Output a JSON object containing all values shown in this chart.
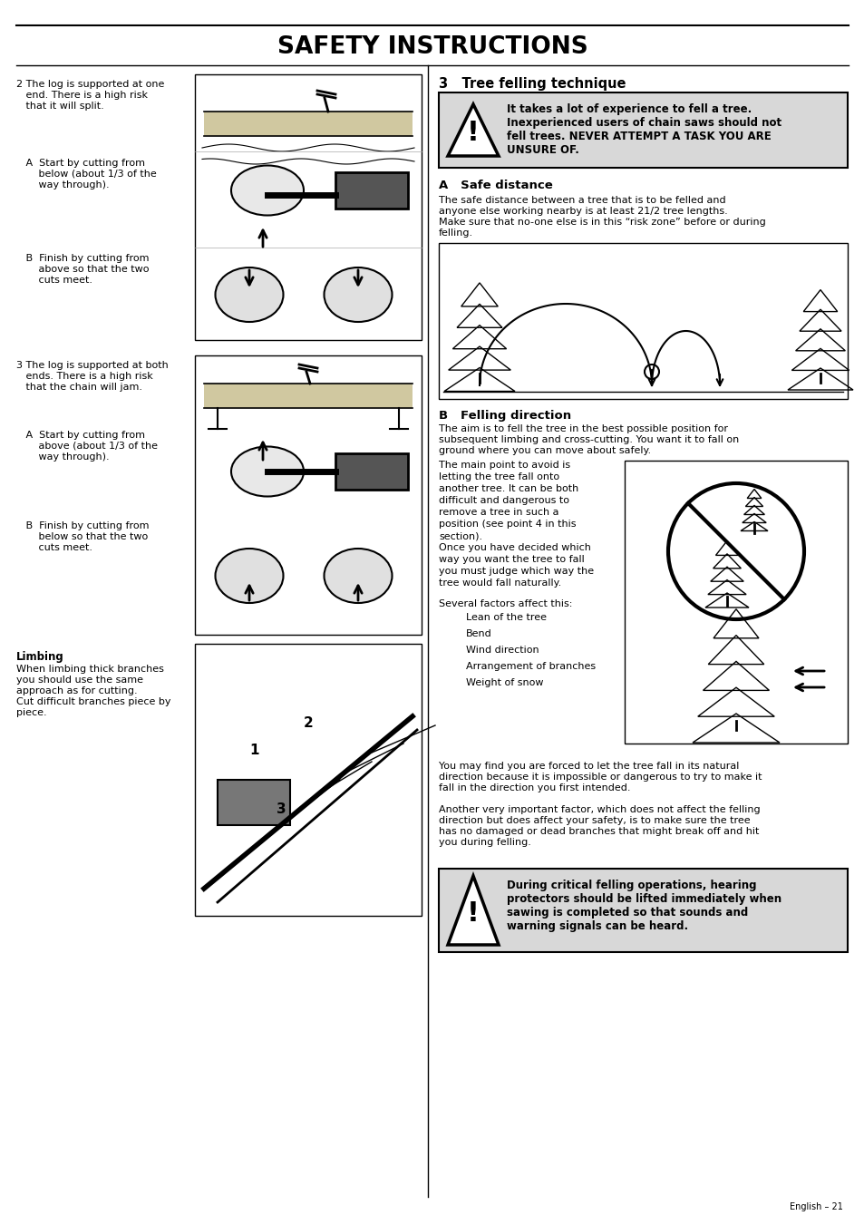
{
  "title": "SAFETY INSTRUCTIONS",
  "bg_color": "#ffffff",
  "text_color": "#000000",
  "page_number": "English – 21",
  "section3_title": "3   Tree felling technique",
  "warn1_line1": "It takes a lot of experience to fell a tree.",
  "warn1_line2": "Inexperienced users of chain saws should not",
  "warn1_line3": "fell trees. NEVER ATTEMPT A TASK YOU ARE",
  "warn1_line4": "UNSURE OF.",
  "warn2_line1": "During critical felling operations, hearing",
  "warn2_line2": "protectors should be lifted immediately when",
  "warn2_line3": "sawing is completed so that sounds and",
  "warn2_line4": "warning signals can be heard.",
  "sA_title": "A   Safe distance",
  "sA_text1": "The safe distance between a tree that is to be felled and",
  "sA_text2": "anyone else working nearby is at least 21/2 tree lengths.",
  "sA_text3": "Make sure that no-one else is in this “risk zone” before or during",
  "sA_text4": "felling.",
  "sB_title": "B   Felling direction",
  "sB_t1": "The aim is to fell the tree in the best possible position for",
  "sB_t2": "subsequent limbing and cross-cutting. You want it to fall on",
  "sB_t3": "ground where you can move about safely.",
  "sB_t4": "The main point to avoid is",
  "sB_t5": "letting the tree fall onto",
  "sB_t6": "another tree. It can be both",
  "sB_t7": "difficult and dangerous to",
  "sB_t8": "remove a tree in such a",
  "sB_t9": "position (see point 4 in this",
  "sB_t10": "section).",
  "sB_t11": "Once you have decided which",
  "sB_t12": "way you want the tree to fall",
  "sB_t13": "you must judge which way the",
  "sB_t14": "tree would fall naturally.",
  "sB_t15": "Several factors affect this:",
  "factors": [
    "Lean of the tree",
    "Bend",
    "Wind direction",
    "Arrangement of branches",
    "Weight of snow"
  ],
  "sB_b1": "You may find you are forced to let the tree fall in its natural",
  "sB_b2": "direction because it is impossible or dangerous to try to make it",
  "sB_b3": "fall in the direction you first intended.",
  "sB_b4": "Another very important factor, which does not affect the felling",
  "sB_b5": "direction but does affect your safety, is to make sure the tree",
  "sB_b6": "has no damaged or dead branches that might break off and hit",
  "sB_b7": "you during felling.",
  "left_t2_1": "2 The log is supported at one",
  "left_t2_2": "   end. There is a high risk",
  "left_t2_3": "   that it will split.",
  "left_t2A_1": "   A  Start by cutting from",
  "left_t2A_2": "       below (about 1/3 of the",
  "left_t2A_3": "       way through).",
  "left_t2B_1": "   B  Finish by cutting from",
  "left_t2B_2": "       above so that the two",
  "left_t2B_3": "       cuts meet.",
  "left_t3_1": "3 The log is supported at both",
  "left_t3_2": "   ends. There is a high risk",
  "left_t3_3": "   that the chain will jam.",
  "left_t3A_1": "   A  Start by cutting from",
  "left_t3A_2": "       above (about 1/3 of the",
  "left_t3A_3": "       way through).",
  "left_t3B_1": "   B  Finish by cutting from",
  "left_t3B_2": "       below so that the two",
  "left_t3B_3": "       cuts meet.",
  "limbing_title": "Limbing",
  "limbing_t1": "When limbing thick branches",
  "limbing_t2": "you should use the same",
  "limbing_t3": "approach as for cutting.",
  "limbing_t4": "Cut difficult branches piece by",
  "limbing_t5": "piece.",
  "font_size_body": 8.0,
  "font_size_title_main": 19,
  "font_size_section": 10.5,
  "font_size_subsection": 9.5
}
